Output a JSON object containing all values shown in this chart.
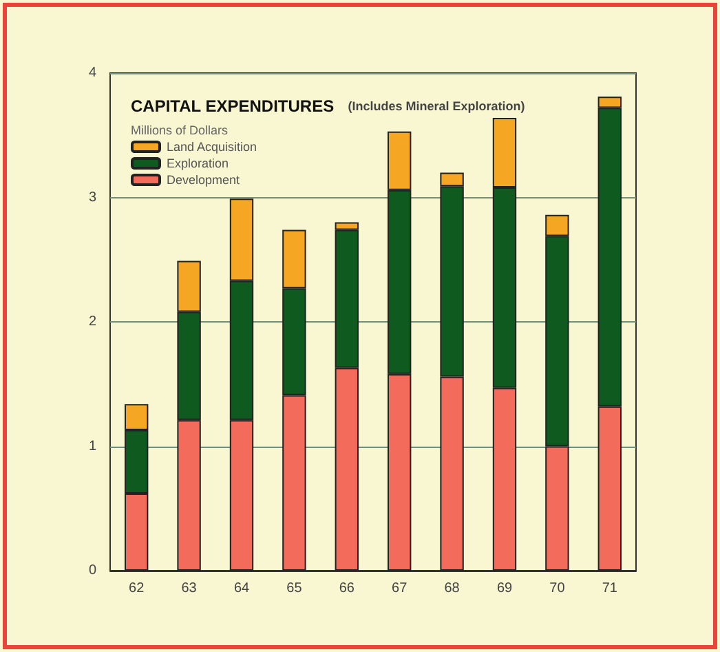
{
  "chart_data": {
    "type": "bar",
    "title": "CAPITAL EXPENDITURES",
    "subtitle": "(Includes Mineral Exploration)",
    "ylabel": "Millions of Dollars",
    "categories": [
      "62",
      "63",
      "64",
      "65",
      "66",
      "67",
      "68",
      "69",
      "70",
      "71"
    ],
    "stacked": true,
    "series": [
      {
        "name": "Development",
        "color": "#f26b5b",
        "values": [
          0.62,
          1.21,
          1.21,
          1.41,
          1.63,
          1.58,
          1.56,
          1.47,
          1.0,
          1.32
        ]
      },
      {
        "name": "Exploration",
        "color": "#0f5a1e",
        "values": [
          0.51,
          0.87,
          1.12,
          0.86,
          1.11,
          1.48,
          1.53,
          1.61,
          1.69,
          2.4
        ]
      },
      {
        "name": "Land Acquisition",
        "color": "#f5a623",
        "values": [
          0.21,
          0.41,
          0.66,
          0.47,
          0.06,
          0.47,
          0.11,
          0.56,
          0.17,
          0.09
        ]
      }
    ],
    "ylim": [
      0,
      4
    ],
    "yticks": [
      0,
      1,
      2,
      3,
      4
    ],
    "grid": "y",
    "legend": "top left"
  }
}
